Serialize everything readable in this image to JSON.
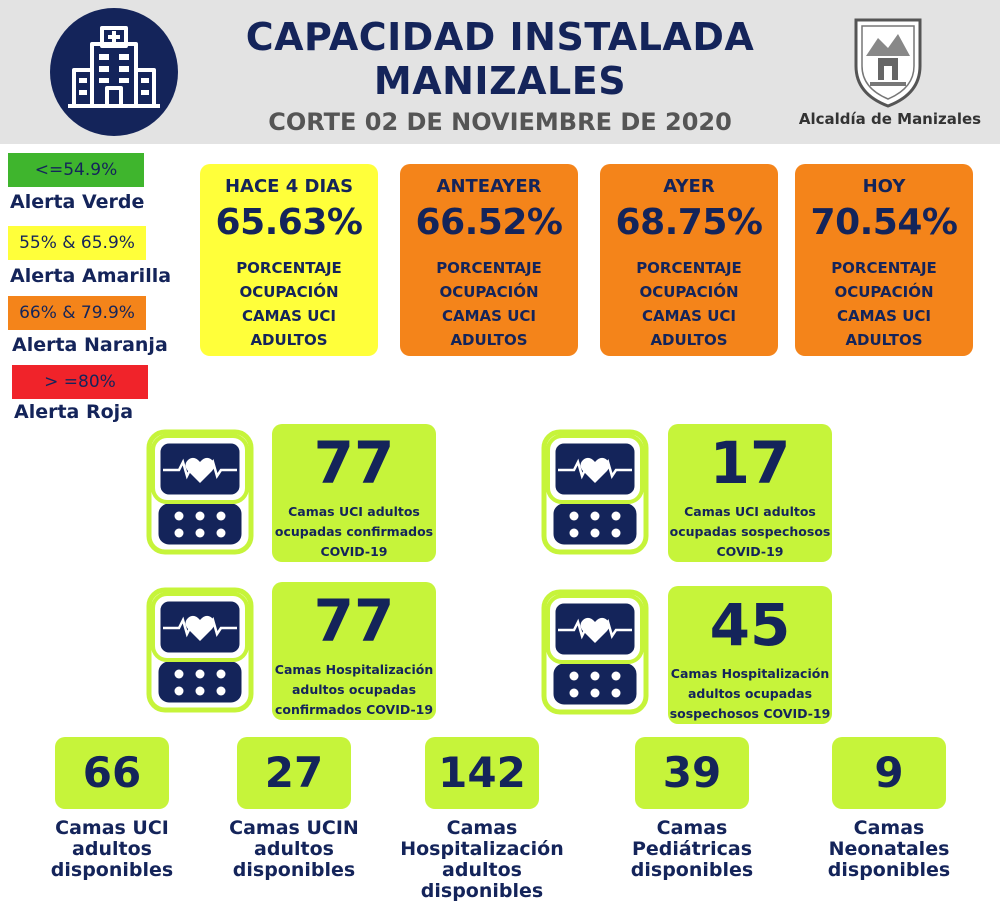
{
  "header": {
    "title_line1": "CAPACIDAD INSTALADA",
    "title_line2": "MANIZALES",
    "corte": "CORTE  02 DE NOVIEMBRE DE 2020",
    "alcaldia": "Alcaldía de Manizales",
    "logo_icon": "hospital-icon",
    "crest_icon": "city-crest-icon"
  },
  "legend": [
    {
      "range": "<=54.9%",
      "label": "Alerta Verde",
      "color": "#3fb52d"
    },
    {
      "range": "55% & 65.9%",
      "label": "Alerta Amarilla",
      "color": "#ffff3a"
    },
    {
      "range": "66% & 79.9%",
      "label": "Alerta Naranja",
      "color": "#f4841a"
    },
    {
      "range": "> =80%",
      "label": "Alerta Roja",
      "color": "#f0232a"
    }
  ],
  "occupancy": [
    {
      "title": "HACE 4 DIAS",
      "value": "65.63%",
      "desc": "PORCENTAJE OCUPACIÓN CAMAS UCI ADULTOS",
      "color": "#ffff3a"
    },
    {
      "title": "ANTEAYER",
      "value": "66.52%",
      "desc": "PORCENTAJE OCUPACIÓN CAMAS UCI ADULTOS",
      "color": "#f4841a"
    },
    {
      "title": "AYER",
      "value": "68.75%",
      "desc": "PORCENTAJE OCUPACIÓN CAMAS UCI ADULTOS",
      "color": "#f4841a"
    },
    {
      "title": "HOY",
      "value": "70.54%",
      "desc": "PORCENTAJE OCUPACIÓN CAMAS UCI ADULTOS",
      "color": "#f4841a"
    }
  ],
  "stats": [
    {
      "value": "77",
      "caption": "Camas UCI adultos ocupadas confirmados COVID-19",
      "icon": "heart-monitor-icon"
    },
    {
      "value": "17",
      "caption": "Camas UCI adultos ocupadas sospechosos COVID-19",
      "icon": "heart-monitor-icon"
    },
    {
      "value": "77",
      "caption": "Camas  Hospitalización adultos ocupadas confirmados COVID-19",
      "icon": "heart-monitor-icon"
    },
    {
      "value": "45",
      "caption": "Camas  Hospitalización adultos ocupadas sospechosos COVID-19",
      "icon": "heart-monitor-icon"
    }
  ],
  "available": [
    {
      "value": "66",
      "label": "Camas UCI adultos disponibles"
    },
    {
      "value": "27",
      "label": "Camas UCIN adultos disponibles"
    },
    {
      "value": "142",
      "label": "Camas Hospitalización adultos disponibles"
    },
    {
      "value": "39",
      "label": "Camas Pediátricas disponibles"
    },
    {
      "value": "9",
      "label": "Camas Neonatales disponibles"
    }
  ],
  "colors": {
    "navy": "#14245a",
    "lime": "#c6f43a",
    "header_bg": "#e3e3e3"
  }
}
